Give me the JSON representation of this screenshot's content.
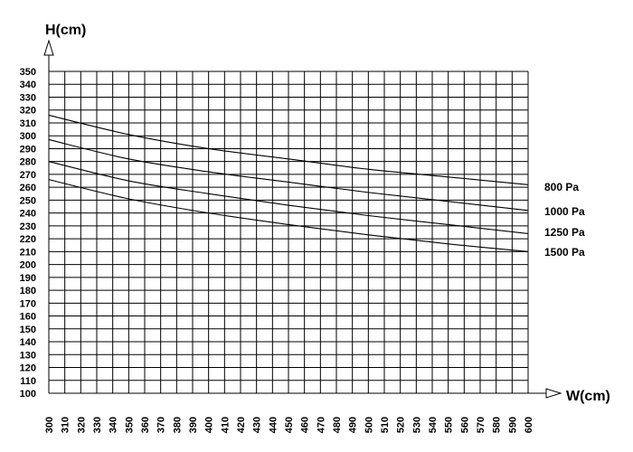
{
  "chart_data": {
    "type": "line",
    "title": "",
    "xlabel": "W(cm)",
    "ylabel": "H(cm)",
    "xlim": [
      300,
      600
    ],
    "ylim": [
      100,
      350
    ],
    "x_ticks": [
      300,
      310,
      320,
      330,
      340,
      350,
      360,
      370,
      380,
      390,
      400,
      410,
      420,
      430,
      440,
      450,
      460,
      470,
      480,
      490,
      500,
      510,
      520,
      530,
      540,
      550,
      560,
      570,
      580,
      590,
      600
    ],
    "y_ticks": [
      100,
      110,
      120,
      130,
      140,
      150,
      160,
      170,
      180,
      190,
      200,
      210,
      220,
      230,
      240,
      250,
      260,
      270,
      280,
      290,
      300,
      310,
      320,
      330,
      340,
      350
    ],
    "grid": true,
    "legend": "right, labels at line ends",
    "series": [
      {
        "name": "800 Pa",
        "x": [
          300,
          350,
          400,
          450,
          500,
          550,
          600
        ],
        "values": [
          316,
          301,
          290,
          282,
          274,
          268,
          262
        ]
      },
      {
        "name": "1000 Pa",
        "x": [
          300,
          350,
          400,
          450,
          500,
          550,
          600
        ],
        "values": [
          297,
          282,
          272,
          264,
          256,
          249,
          242
        ]
      },
      {
        "name": "1250 Pa",
        "x": [
          300,
          350,
          400,
          450,
          500,
          550,
          600
        ],
        "values": [
          280,
          265,
          255,
          246,
          238,
          231,
          224
        ]
      },
      {
        "name": "1500 Pa",
        "x": [
          300,
          350,
          400,
          450,
          500,
          550,
          600
        ],
        "values": [
          266,
          251,
          240,
          231,
          223,
          216,
          210
        ]
      }
    ]
  }
}
